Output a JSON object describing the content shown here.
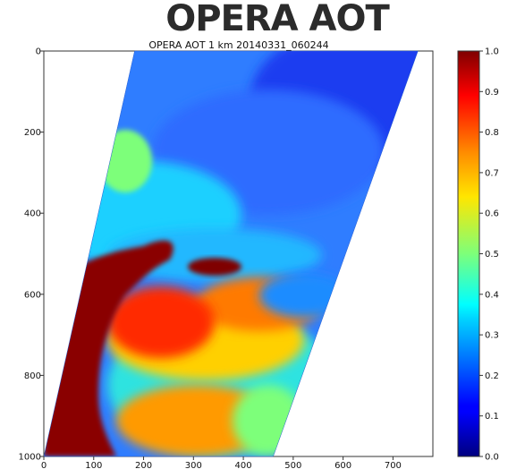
{
  "header": {
    "title": "OPERA AOT"
  },
  "chart_data": {
    "type": "heatmap",
    "title": "OPERA AOT 1 km 20140331_060244",
    "xlabel": "",
    "ylabel": "",
    "x_ticks": [
      "0",
      "100",
      "200",
      "300",
      "400",
      "500",
      "600",
      "700"
    ],
    "y_ticks": [
      "0",
      "200",
      "400",
      "600",
      "800",
      "1000"
    ],
    "xlim": [
      0,
      780
    ],
    "ylim": [
      1000,
      0
    ],
    "colorbar": {
      "colormap": "jet",
      "range": [
        0.0,
        1.0
      ],
      "ticks": [
        "0.0",
        "0.1",
        "0.2",
        "0.3",
        "0.4",
        "0.5",
        "0.6",
        "0.7",
        "0.8",
        "0.9",
        "1.0"
      ]
    },
    "swath": {
      "description": "tilted satellite swath",
      "corners": [
        [
          182,
          0
        ],
        [
          750,
          0
        ],
        [
          460,
          1000
        ],
        [
          0,
          1000
        ]
      ]
    },
    "regions": [
      {
        "name": "north",
        "value": 0.15
      },
      {
        "name": "central",
        "value": 0.28
      },
      {
        "name": "south-west",
        "value": 1.0
      },
      {
        "name": "south-central",
        "value": 0.75
      },
      {
        "name": "south-east",
        "value": 0.45
      }
    ]
  }
}
